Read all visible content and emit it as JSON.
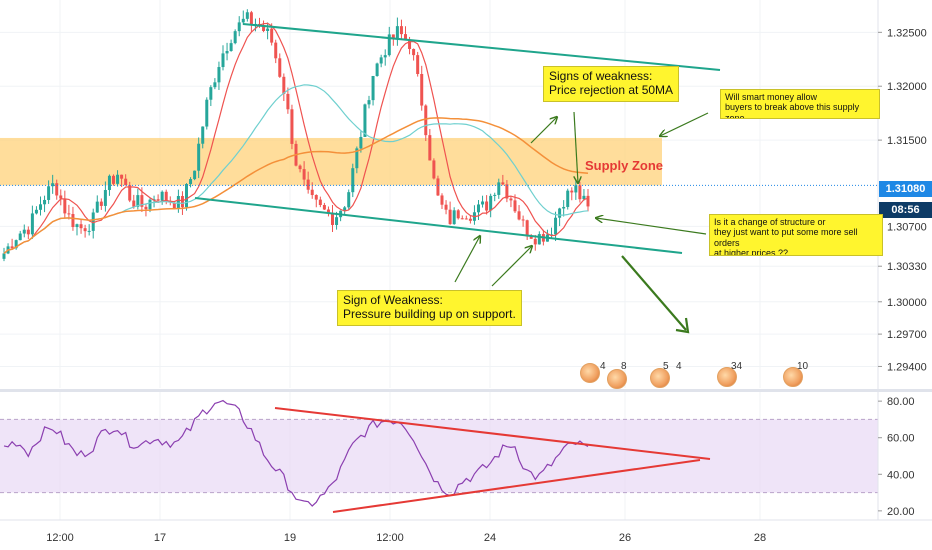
{
  "price_axis": {
    "ticks": [
      "1.32500",
      "1.32000",
      "1.31500",
      "1.31080",
      "1.30700",
      "1.30330",
      "1.30000",
      "1.29700",
      "1.29400"
    ],
    "last_price": "1.31080",
    "countdown": "08:56"
  },
  "rsi_axis": {
    "ticks": [
      "80.00",
      "60.00",
      "40.00",
      "20.00"
    ]
  },
  "time_axis": {
    "labels": [
      "12:00",
      "17",
      "19",
      "12:00",
      "24",
      "26",
      "28"
    ]
  },
  "annotations": {
    "supply_zone": "Supply Zone",
    "signs_weakness_50ma": "Signs of weakness:\nPrice rejection at 50MA",
    "smart_money": "Will smart money allow\nbuyers to break above this supply zone",
    "change_structure": "Is it a change of structure or\nthey just want to put some more sell orders\nat higher prices ??",
    "sign_weakness_support": "Sign of Weakness:\nPressure building up on support."
  },
  "events": [
    {
      "count": "4"
    },
    {
      "count": "8"
    },
    {
      "count": "5"
    },
    {
      "count": "4"
    },
    {
      "count": "34"
    },
    {
      "count": "10"
    }
  ],
  "colors": {
    "bull": "#26a69a",
    "bear": "#ef5350",
    "channel": "#1fa58c",
    "supply_zone": "#ffd27a",
    "ma_fast": "#ef5350",
    "ma_mid": "#6fd0cf",
    "ma_slow": "#f4903a",
    "rsi": "#8b3fb0",
    "rsi_band": "#e8d9f5",
    "triangle": "#e53935",
    "arrow": "#3b7a1e",
    "last_price_tag": "#1e88e5",
    "countdown_tag": "#0d3b66"
  },
  "chart_data": {
    "type": "candlestick",
    "x": [
      "12:00",
      "17",
      "19",
      "12:00",
      "24",
      "26",
      "28"
    ],
    "close_path": [
      1.3045,
      1.3062,
      1.307,
      1.3095,
      1.311,
      1.308,
      1.3068,
      1.3075,
      1.3105,
      1.312,
      1.3095,
      1.3088,
      1.31,
      1.3095,
      1.309,
      1.3125,
      1.3185,
      1.3225,
      1.325,
      1.3262,
      1.3258,
      1.3245,
      1.32,
      1.313,
      1.3095,
      1.3085,
      1.3078,
      1.3095,
      1.315,
      1.321,
      1.3235,
      1.325,
      1.324,
      1.318,
      1.31,
      1.3075,
      1.3085,
      1.3082,
      1.309,
      1.3115,
      1.3095,
      1.3068,
      1.306,
      1.3065,
      1.3095,
      1.3105,
      1.3085
    ],
    "ylim": [
      1.292,
      1.328
    ],
    "supply_zone": [
      1.3108,
      1.3152
    ],
    "last_price": 1.3108,
    "rsi": {
      "values": [
        55,
        58,
        52,
        62,
        66,
        57,
        50,
        54,
        63,
        67,
        58,
        56,
        60,
        58,
        57,
        65,
        74,
        80,
        78,
        73,
        63,
        50,
        42,
        33,
        22,
        25,
        30,
        41,
        55,
        63,
        68,
        70,
        69,
        60,
        45,
        34,
        30,
        37,
        40,
        45,
        53,
        57,
        42,
        38,
        45,
        53,
        57,
        54
      ],
      "ylim": [
        15,
        85
      ],
      "band": [
        30,
        70
      ]
    }
  }
}
